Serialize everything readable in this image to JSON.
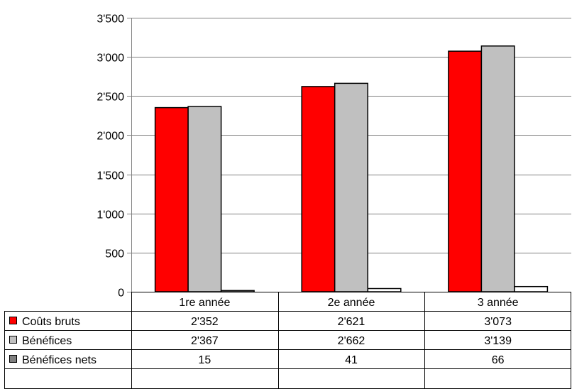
{
  "chart_data": {
    "type": "bar",
    "categories": [
      "1re année",
      "2e année",
      "3 année"
    ],
    "series": [
      {
        "name": "Coûts bruts",
        "values": [
          2352,
          2621,
          3073
        ],
        "labels": [
          "2'352",
          "2'621",
          "3'073"
        ],
        "color": "#ff0000"
      },
      {
        "name": "Bénéfices",
        "values": [
          2367,
          2662,
          3139
        ],
        "labels": [
          "2'367",
          "2'662",
          "3'139"
        ],
        "color": "#c0c0c0"
      },
      {
        "name": "Bénéfices nets",
        "values": [
          15,
          41,
          66
        ],
        "labels": [
          "15",
          "41",
          "66"
        ],
        "color": "#ffffff"
      }
    ],
    "legend_key_colors": [
      "#ff0000",
      "#c0c0c0",
      "#808080"
    ],
    "ylim": [
      0,
      3500
    ],
    "yticks": [
      0,
      500,
      1000,
      1500,
      2000,
      2500,
      3000,
      3500
    ],
    "ytick_labels": [
      "0",
      "500",
      "1'000",
      "1'500",
      "2'000",
      "2'500",
      "3'000",
      "3'500"
    ],
    "grid": true,
    "legend": "data-table"
  }
}
